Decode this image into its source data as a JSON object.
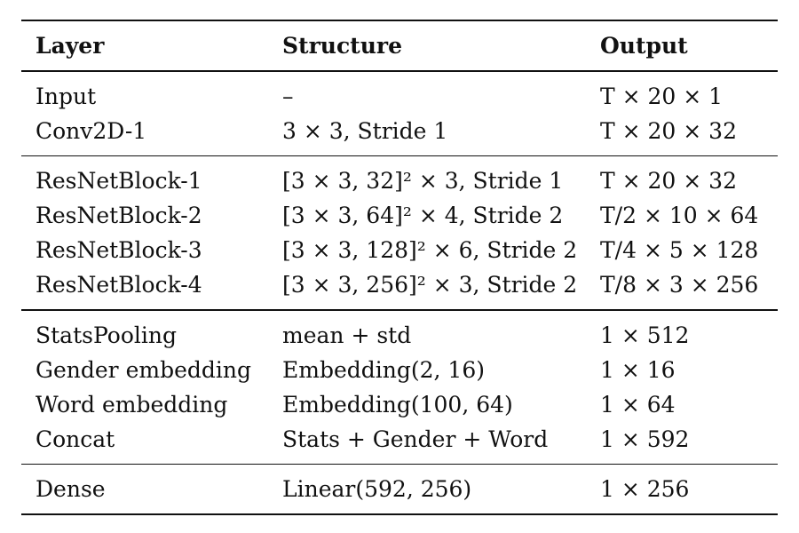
{
  "table": {
    "headers": {
      "layer": "Layer",
      "structure": "Structure",
      "output": "Output"
    },
    "groups": [
      {
        "rows": [
          {
            "layer": "Input",
            "structure": "–",
            "output": "T × 20 × 1"
          },
          {
            "layer": "Conv2D-1",
            "structure": "3 × 3, Stride 1",
            "output": "T × 20 × 32"
          }
        ]
      },
      {
        "rows": [
          {
            "layer": "ResNetBlock-1",
            "structure": "[3 × 3, 32]² × 3, Stride 1",
            "output": "T × 20 × 32"
          },
          {
            "layer": "ResNetBlock-2",
            "structure": "[3 × 3, 64]² × 4, Stride 2",
            "output": "T/2 × 10 × 64"
          },
          {
            "layer": "ResNetBlock-3",
            "structure": "[3 × 3, 128]² × 6, Stride 2",
            "output": "T/4 × 5 × 128"
          },
          {
            "layer": "ResNetBlock-4",
            "structure": "[3 × 3, 256]² × 3, Stride 2",
            "output": "T/8 × 3 × 256"
          }
        ]
      },
      {
        "rows": [
          {
            "layer": "StatsPooling",
            "structure": "mean + std",
            "output": "1 × 512"
          },
          {
            "layer": "Gender embedding",
            "structure": "Embedding(2, 16)",
            "output": "1 × 16"
          },
          {
            "layer": "Word embedding",
            "structure": "Embedding(100, 64)",
            "output": "1 × 64"
          },
          {
            "layer": "Concat",
            "structure": "Stats + Gender + Word",
            "output": "1 × 592"
          }
        ]
      },
      {
        "rows": [
          {
            "layer": "Dense",
            "structure": "Linear(592, 256)",
            "output": "1 × 256"
          }
        ]
      }
    ]
  }
}
